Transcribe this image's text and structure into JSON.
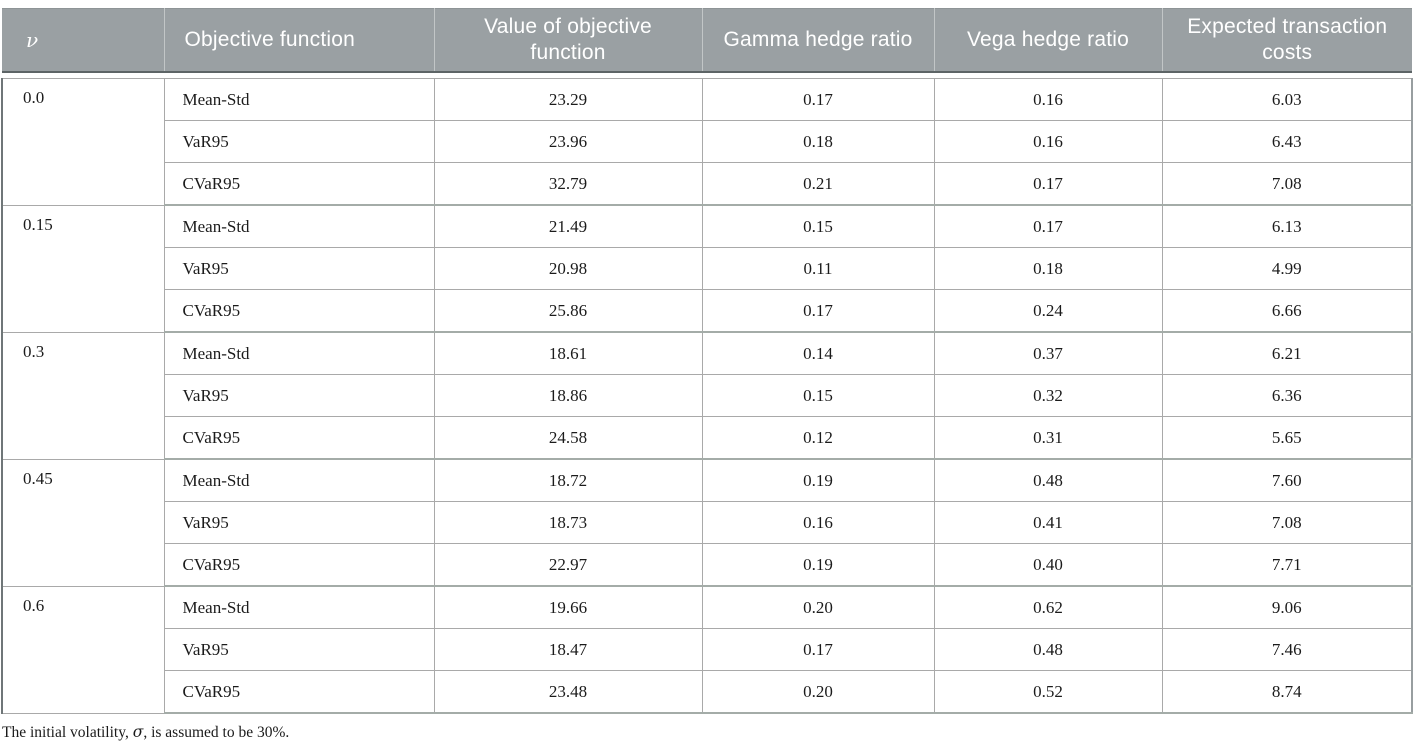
{
  "table": {
    "columns": [
      {
        "key": "v",
        "label": "ν",
        "style": "nu"
      },
      {
        "key": "obj",
        "label": "Objective function",
        "style": "left"
      },
      {
        "key": "val",
        "label": "Value of objective function",
        "style": "center"
      },
      {
        "key": "gamma",
        "label": "Gamma hedge ratio",
        "style": "center"
      },
      {
        "key": "vega",
        "label": "Vega hedge ratio",
        "style": "center"
      },
      {
        "key": "cost",
        "label": "Expected transaction costs",
        "style": "center"
      }
    ],
    "groups": [
      {
        "v": "0.0",
        "rows": [
          {
            "objective": "Mean-Std",
            "value": "23.29",
            "gamma": "0.17",
            "vega": "0.16",
            "cost": "6.03"
          },
          {
            "objective": "VaR95",
            "value": "23.96",
            "gamma": "0.18",
            "vega": "0.16",
            "cost": "6.43"
          },
          {
            "objective": "CVaR95",
            "value": "32.79",
            "gamma": "0.21",
            "vega": "0.17",
            "cost": "7.08"
          }
        ]
      },
      {
        "v": "0.15",
        "rows": [
          {
            "objective": "Mean-Std",
            "value": "21.49",
            "gamma": "0.15",
            "vega": "0.17",
            "cost": "6.13"
          },
          {
            "objective": "VaR95",
            "value": "20.98",
            "gamma": "0.11",
            "vega": "0.18",
            "cost": "4.99"
          },
          {
            "objective": "CVaR95",
            "value": "25.86",
            "gamma": "0.17",
            "vega": "0.24",
            "cost": "6.66"
          }
        ]
      },
      {
        "v": "0.3",
        "rows": [
          {
            "objective": "Mean-Std",
            "value": "18.61",
            "gamma": "0.14",
            "vega": "0.37",
            "cost": "6.21"
          },
          {
            "objective": "VaR95",
            "value": "18.86",
            "gamma": "0.15",
            "vega": "0.32",
            "cost": "6.36"
          },
          {
            "objective": "CVaR95",
            "value": "24.58",
            "gamma": "0.12",
            "vega": "0.31",
            "cost": "5.65"
          }
        ]
      },
      {
        "v": "0.45",
        "rows": [
          {
            "objective": "Mean-Std",
            "value": "18.72",
            "gamma": "0.19",
            "vega": "0.48",
            "cost": "7.60"
          },
          {
            "objective": "VaR95",
            "value": "18.73",
            "gamma": "0.16",
            "vega": "0.41",
            "cost": "7.08"
          },
          {
            "objective": "CVaR95",
            "value": "22.97",
            "gamma": "0.19",
            "vega": "0.40",
            "cost": "7.71"
          }
        ]
      },
      {
        "v": "0.6",
        "rows": [
          {
            "objective": "Mean-Std",
            "value": "19.66",
            "gamma": "0.20",
            "vega": "0.62",
            "cost": "9.06"
          },
          {
            "objective": "VaR95",
            "value": "18.47",
            "gamma": "0.17",
            "vega": "0.48",
            "cost": "7.46"
          },
          {
            "objective": "CVaR95",
            "value": "23.48",
            "gamma": "0.20",
            "vega": "0.52",
            "cost": "8.74"
          }
        ]
      }
    ],
    "footnote": {
      "prefix": "The initial volatility, ",
      "sigma": "σ",
      "suffix": ", is assumed to be 30%."
    }
  },
  "colors": {
    "header_bg": "#9aa0a3",
    "header_text": "#ffffff",
    "grid_line": "#a9a9a9",
    "header_rule_dark": "#5d6466",
    "body_text": "#1b1b1b"
  }
}
